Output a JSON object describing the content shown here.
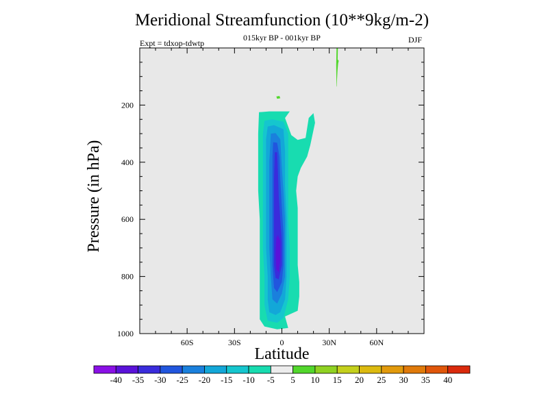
{
  "chart_data": {
    "type": "heatmap",
    "title": "Meridional Streamfunction (10**9kg/m-2)",
    "subtitle": "015kyr BP - 001kyr BP",
    "left_annotation": "Expt = tdxop-tdwtp",
    "right_annotation": "DJF",
    "xlabel": "Latitude",
    "ylabel": "Pressure (in hPa)",
    "xlim": [
      -90,
      90
    ],
    "ylim": [
      0,
      1000
    ],
    "y_inverted": true,
    "x_ticks": [
      {
        "value": -60,
        "label": "60S"
      },
      {
        "value": -30,
        "label": "30S"
      },
      {
        "value": 0,
        "label": "0"
      },
      {
        "value": 30,
        "label": "30N"
      },
      {
        "value": 60,
        "label": "60N"
      }
    ],
    "y_ticks": [
      {
        "value": 200,
        "label": "200"
      },
      {
        "value": 400,
        "label": "400"
      },
      {
        "value": 600,
        "label": "600"
      },
      {
        "value": 800,
        "label": "800"
      },
      {
        "value": 1000,
        "label": "1000"
      }
    ],
    "colorbar": {
      "tick_labels": [
        "-40",
        "-35",
        "-30",
        "-25",
        "-20",
        "-15",
        "-10",
        "-5",
        "5",
        "10",
        "15",
        "20",
        "25",
        "30",
        "35",
        "40"
      ],
      "colors": [
        "#8a10e6",
        "#5a12d9",
        "#3a2cdc",
        "#2156de",
        "#1a80dd",
        "#13a7d8",
        "#15c6ce",
        "#18dcb0",
        "#ececec",
        "#52d72c",
        "#8fd222",
        "#c4d01c",
        "#dcba10",
        "#e29a0c",
        "#e07a0a",
        "#e0560a",
        "#da2a0c"
      ]
    },
    "background_color": "#e8e8e8",
    "contours": [
      {
        "level": "-5 to -10",
        "color": "#18dcb0",
        "outline": [
          [
            -14.5,
            225
          ],
          [
            -8,
            222
          ],
          [
            5,
            222
          ],
          [
            2,
            245
          ],
          [
            6,
            305
          ],
          [
            10,
            322
          ],
          [
            15,
            315
          ],
          [
            17,
            245
          ],
          [
            20,
            228
          ],
          [
            21,
            262
          ],
          [
            18,
            340
          ],
          [
            16,
            380
          ],
          [
            12,
            420
          ],
          [
            10,
            450
          ],
          [
            9,
            500
          ],
          [
            10,
            560
          ],
          [
            10,
            640
          ],
          [
            10,
            700
          ],
          [
            10,
            760
          ],
          [
            11,
            820
          ],
          [
            11,
            870
          ],
          [
            10,
            920
          ],
          [
            2,
            940
          ],
          [
            4,
            980
          ],
          [
            -3,
            985
          ],
          [
            -11,
            975
          ],
          [
            -14,
            950
          ],
          [
            -14,
            850
          ],
          [
            -14,
            800
          ],
          [
            -14,
            700
          ],
          [
            -14,
            600
          ],
          [
            -15,
            500
          ],
          [
            -15,
            400
          ],
          [
            -15,
            300
          ]
        ]
      },
      {
        "level": "-10 to -15",
        "color": "#15c6ce",
        "outline": [
          [
            -11,
            255
          ],
          [
            -6,
            250
          ],
          [
            1,
            258
          ],
          [
            4,
            300
          ],
          [
            4,
            380
          ],
          [
            4,
            500
          ],
          [
            4,
            600
          ],
          [
            5,
            700
          ],
          [
            5,
            800
          ],
          [
            4,
            880
          ],
          [
            1,
            945
          ],
          [
            -3,
            962
          ],
          [
            -9,
            955
          ],
          [
            -11,
            900
          ],
          [
            -11,
            800
          ],
          [
            -12,
            700
          ],
          [
            -12,
            600
          ],
          [
            -12,
            500
          ],
          [
            -12,
            400
          ],
          [
            -12,
            300
          ]
        ]
      },
      {
        "level": "-15 to -20",
        "color": "#13a7d8",
        "outline": [
          [
            -9,
            275
          ],
          [
            -5,
            270
          ],
          [
            1,
            285
          ],
          [
            2,
            360
          ],
          [
            2,
            480
          ],
          [
            3,
            600
          ],
          [
            3,
            700
          ],
          [
            3,
            800
          ],
          [
            2,
            880
          ],
          [
            -1,
            925
          ],
          [
            -4,
            935
          ],
          [
            -8,
            925
          ],
          [
            -9,
            880
          ],
          [
            -9,
            800
          ],
          [
            -10,
            700
          ],
          [
            -10,
            600
          ],
          [
            -10,
            500
          ],
          [
            -10,
            400
          ],
          [
            -10,
            320
          ]
        ]
      },
      {
        "level": "-20 to -25",
        "color": "#1a80dd",
        "outline": [
          [
            -7,
            300
          ],
          [
            -4,
            298
          ],
          [
            -1,
            320
          ],
          [
            0,
            420
          ],
          [
            1,
            500
          ],
          [
            2,
            600
          ],
          [
            2,
            700
          ],
          [
            2,
            800
          ],
          [
            0,
            860
          ],
          [
            -3,
            895
          ],
          [
            -6,
            880
          ],
          [
            -7,
            800
          ],
          [
            -8,
            700
          ],
          [
            -8,
            600
          ],
          [
            -8,
            500
          ],
          [
            -8,
            400
          ]
        ]
      },
      {
        "level": "-25 to -30",
        "color": "#2156de",
        "outline": [
          [
            -5.5,
            330
          ],
          [
            -3,
            332
          ],
          [
            -1.5,
            380
          ],
          [
            -1,
            460
          ],
          [
            0,
            560
          ],
          [
            1,
            650
          ],
          [
            1,
            760
          ],
          [
            0,
            820
          ],
          [
            -3,
            855
          ],
          [
            -5,
            840
          ],
          [
            -6,
            760
          ],
          [
            -6,
            660
          ],
          [
            -6,
            560
          ],
          [
            -6,
            460
          ],
          [
            -6,
            380
          ]
        ]
      },
      {
        "level": "-30 to -35",
        "color": "#3a2cdc",
        "outline": [
          [
            -4.5,
            365
          ],
          [
            -3,
            365
          ],
          [
            -2.5,
            430
          ],
          [
            -2,
            520
          ],
          [
            -1,
            600
          ],
          [
            0,
            680
          ],
          [
            0,
            760
          ],
          [
            -2,
            810
          ],
          [
            -4,
            805
          ],
          [
            -5,
            760
          ],
          [
            -5,
            660
          ],
          [
            -5,
            560
          ],
          [
            -5,
            460
          ]
        ]
      },
      {
        "level": "-35 to -40",
        "color": "#5a12d9",
        "outline": [
          [
            -2.5,
            655
          ],
          [
            -1,
            675
          ],
          [
            -1,
            740
          ],
          [
            -2,
            785
          ],
          [
            -3.5,
            775
          ],
          [
            -4,
            720
          ],
          [
            -3.5,
            665
          ]
        ]
      },
      {
        "level": "5 to 10",
        "color": "#52d72c",
        "outline": [
          [
            -3.5,
            170
          ],
          [
            -1.5,
            168
          ],
          [
            -1,
            176
          ],
          [
            -3,
            178
          ]
        ]
      },
      {
        "level": "5 to 10",
        "color": "#52d72c",
        "outline": [
          [
            34.5,
            0
          ],
          [
            35.5,
            0
          ],
          [
            35.3,
            40
          ],
          [
            36,
            45
          ],
          [
            35.6,
            55
          ],
          [
            35.2,
            80
          ],
          [
            34.9,
            110
          ],
          [
            34.8,
            135
          ],
          [
            34.6,
            135
          ],
          [
            34.5,
            100
          ],
          [
            34.4,
            60
          ],
          [
            34.6,
            0
          ]
        ]
      }
    ]
  }
}
